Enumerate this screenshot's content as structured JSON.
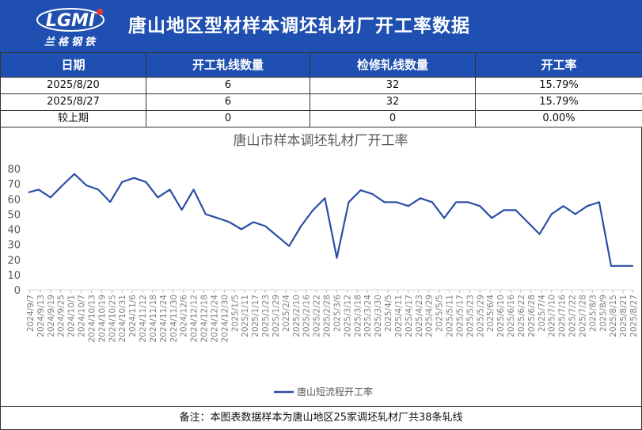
{
  "header": {
    "title": "唐山地区型材样本调坯轧材厂开工率数据",
    "logo_letters": "LGMI",
    "logo_text": "兰格钢铁"
  },
  "table": {
    "columns": [
      "日期",
      "开工轧线数量",
      "检修轧线数量",
      "开工率"
    ],
    "rows": [
      [
        "2025/8/20",
        "6",
        "32",
        "15.79%"
      ],
      [
        "2025/8/27",
        "6",
        "32",
        "15.79%"
      ],
      [
        "较上期",
        "0",
        "0",
        "0.00%"
      ]
    ]
  },
  "colors": {
    "header_bg": "#1f4fb0",
    "line": "#2a4ea6"
  },
  "chart_data": {
    "type": "line",
    "title": "唐山市样本调坯轧材厂开工率",
    "ylim": [
      0,
      80
    ],
    "yticks": [
      0,
      10,
      20,
      30,
      40,
      50,
      60,
      70,
      80
    ],
    "grid": false,
    "legend_placement": "bottom",
    "x_labels": [
      "2024/9/7",
      "2024/9/13",
      "2024/9/19",
      "2024/9/25",
      "2024/10/1",
      "2024/10/7",
      "2024/10/13",
      "2024/10/19",
      "2024/10/25",
      "2024/10/31",
      "2024/11/6",
      "2024/11/12",
      "2024/11/18",
      "2024/11/24",
      "2024/11/30",
      "2024/12/6",
      "2024/12/12",
      "2024/12/18",
      "2024/12/24",
      "2024/12/30",
      "2025/1/5",
      "2025/1/11",
      "2025/1/17",
      "2025/1/23",
      "2025/1/29",
      "2025/2/4",
      "2025/2/10",
      "2025/2/16",
      "2025/2/22",
      "2025/2/28",
      "2025/3/6",
      "2025/3/12",
      "2025/3/18",
      "2025/3/24",
      "2025/3/30",
      "2025/4/5",
      "2025/4/11",
      "2025/4/17",
      "2025/4/23",
      "2025/4/29",
      "2025/5/5",
      "2025/5/11",
      "2025/5/17",
      "2025/5/23",
      "2025/5/29",
      "2025/6/4",
      "2025/6/10",
      "2025/6/16",
      "2025/6/22",
      "2025/6/28",
      "2025/7/4",
      "2025/7/10",
      "2025/7/16",
      "2025/7/22",
      "2025/7/28",
      "2025/8/3",
      "2025/8/9",
      "2025/8/15",
      "2025/8/21",
      "2025/8/27"
    ],
    "x": [
      "2024/9/6",
      "2024/9/12",
      "2024/9/19",
      "2024/9/26",
      "2024/10/3",
      "2024/10/10",
      "2024/10/17",
      "2024/10/24",
      "2024/10/31",
      "2024/11/7",
      "2024/11/14",
      "2024/11/21",
      "2024/11/28",
      "2024/12/5",
      "2024/12/12",
      "2024/12/19",
      "2024/12/26",
      "2025/1/2",
      "2025/1/9",
      "2025/1/16",
      "2025/1/23",
      "2025/2/6",
      "2025/2/13",
      "2025/2/20",
      "2025/2/27",
      "2025/3/6",
      "2025/3/13",
      "2025/3/20",
      "2025/3/27",
      "2025/4/3",
      "2025/4/10",
      "2025/4/17",
      "2025/4/24",
      "2025/5/1",
      "2025/5/8",
      "2025/5/15",
      "2025/5/22",
      "2025/5/29",
      "2025/6/5",
      "2025/6/12",
      "2025/6/19",
      "2025/7/3",
      "2025/7/10",
      "2025/7/17",
      "2025/7/24",
      "2025/7/31",
      "2025/8/7",
      "2025/8/14",
      "2025/8/20",
      "2025/8/27"
    ],
    "series": [
      {
        "name": "唐山短流程开工率",
        "values": [
          64.3,
          66.2,
          61,
          69,
          76.5,
          69,
          66.2,
          58,
          71.2,
          73.9,
          71.2,
          61,
          66.2,
          52.8,
          66.2,
          50,
          47.4,
          44.7,
          40,
          44.7,
          42.1,
          28.9,
          42.1,
          52.6,
          60.5,
          21.1,
          57.9,
          65.8,
          63.2,
          57.9,
          57.9,
          55.3,
          60.5,
          57.9,
          47.4,
          57.9,
          57.9,
          55.3,
          47.4,
          52.6,
          52.6,
          36.8,
          50,
          55.3,
          50,
          55.3,
          57.9,
          15.8,
          15.79,
          15.79
        ]
      }
    ]
  },
  "footer": {
    "note": "备注：本图表数据样本为唐山地区25家调坯轧材厂共38条轧线"
  }
}
